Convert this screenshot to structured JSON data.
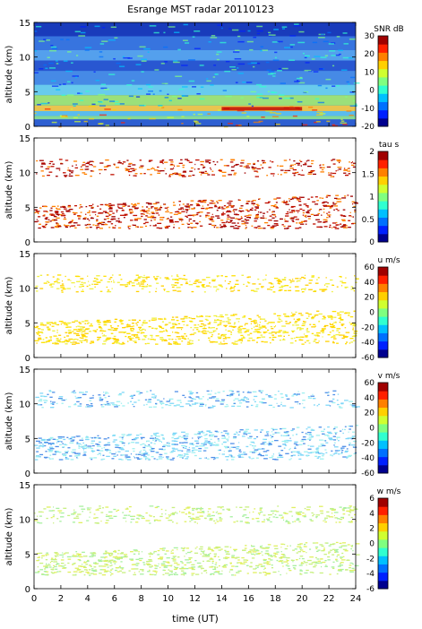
{
  "title": "Esrange MST radar 20110123",
  "xlabel": "time (UT)",
  "xticks": [
    "0",
    "2",
    "4",
    "6",
    "8",
    "10",
    "12",
    "14",
    "16",
    "18",
    "20",
    "22",
    "24"
  ],
  "chart_data": [
    {
      "type": "heatmap",
      "panel": "snr",
      "xlabel": "time (UT)",
      "ylabel": "altitude (km)",
      "xlim": [
        0,
        24
      ],
      "ylim": [
        0,
        15
      ],
      "yticks": [
        "0",
        "5",
        "10",
        "15"
      ],
      "colorbar": {
        "label": "SNR dB",
        "range": [
          -20,
          30
        ],
        "ticks": [
          "30",
          "20",
          "10",
          "0",
          "-10",
          "-20"
        ]
      }
    },
    {
      "type": "heatmap",
      "panel": "tau",
      "xlabel": "time (UT)",
      "ylabel": "altitude (km)",
      "xlim": [
        0,
        24
      ],
      "ylim": [
        0,
        15
      ],
      "yticks": [
        "0",
        "5",
        "10",
        "15"
      ],
      "colorbar": {
        "label": "tau s",
        "range": [
          0,
          2
        ],
        "ticks": [
          "2",
          "1.5",
          "1",
          "0.5",
          "0"
        ]
      }
    },
    {
      "type": "heatmap",
      "panel": "u",
      "xlabel": "time (UT)",
      "ylabel": "altitude (km)",
      "xlim": [
        0,
        24
      ],
      "ylim": [
        0,
        15
      ],
      "yticks": [
        "0",
        "5",
        "10",
        "15"
      ],
      "colorbar": {
        "label": "u m/s",
        "range": [
          -60,
          60
        ],
        "ticks": [
          "60",
          "40",
          "20",
          "0",
          "-20",
          "-40",
          "-60"
        ]
      }
    },
    {
      "type": "heatmap",
      "panel": "v",
      "xlabel": "time (UT)",
      "ylabel": "altitude (km)",
      "xlim": [
        0,
        24
      ],
      "ylim": [
        0,
        15
      ],
      "yticks": [
        "0",
        "5",
        "10",
        "15"
      ],
      "colorbar": {
        "label": "v m/s",
        "range": [
          -60,
          60
        ],
        "ticks": [
          "60",
          "40",
          "20",
          "0",
          "-20",
          "-40",
          "-60"
        ]
      }
    },
    {
      "type": "heatmap",
      "panel": "w",
      "xlabel": "time (UT)",
      "ylabel": "altitude (km)",
      "xlim": [
        0,
        24
      ],
      "ylim": [
        0,
        15
      ],
      "yticks": [
        "0",
        "5",
        "10",
        "15"
      ],
      "colorbar": {
        "label": "w m/s",
        "range": [
          -6,
          6
        ],
        "ticks": [
          "6",
          "4",
          "2",
          "0",
          "-2",
          "-4",
          "-6"
        ]
      }
    }
  ]
}
